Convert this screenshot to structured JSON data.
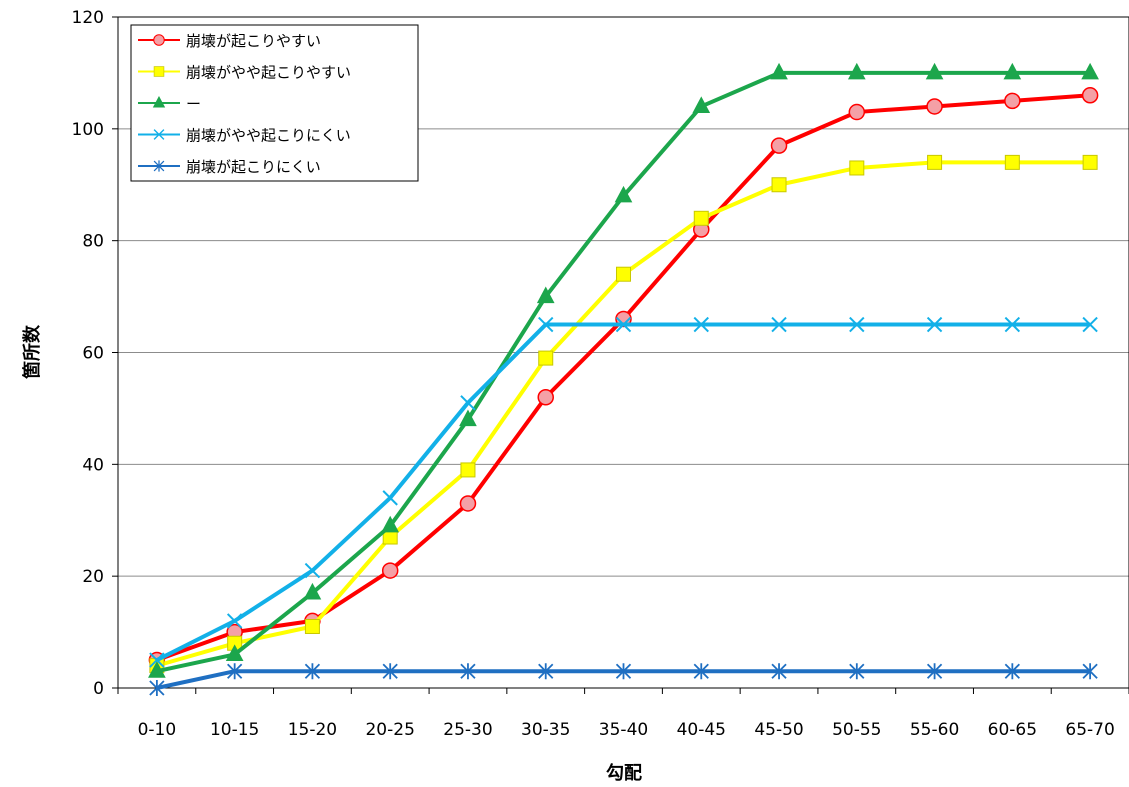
{
  "chart_data": {
    "type": "line",
    "categories": [
      "0-10",
      "10-15",
      "15-20",
      "20-25",
      "25-30",
      "30-35",
      "35-40",
      "40-45",
      "45-50",
      "50-55",
      "55-60",
      "60-65",
      "65-70"
    ],
    "xlabel": "勾配",
    "ylabel": "箇所数",
    "ylim": [
      0,
      120
    ],
    "yticks": [
      0,
      20,
      40,
      60,
      80,
      100,
      120
    ],
    "grid": true,
    "legend_position": "top-left",
    "series": [
      {
        "name": "崩壊が起こりやすい",
        "color": "#ff0000",
        "marker": "circle",
        "marker_fill": "#f4a0a6",
        "values": [
          5,
          10,
          12,
          21,
          33,
          52,
          66,
          82,
          97,
          103,
          104,
          105,
          106
        ]
      },
      {
        "name": "崩壊がやや起こりやすい",
        "color": "#ffff00",
        "marker": "square",
        "marker_fill": "#ffff00",
        "values": [
          4,
          8,
          11,
          27,
          39,
          59,
          74,
          84,
          90,
          93,
          94,
          94,
          94
        ]
      },
      {
        "name": "ー",
        "color": "#1ca64c",
        "marker": "triangle",
        "marker_fill": "#1ca64c",
        "values": [
          3,
          6,
          17,
          29,
          48,
          70,
          88,
          104,
          110,
          110,
          110,
          110,
          110
        ]
      },
      {
        "name": "崩壊がやや起こりにくい",
        "color": "#12b0e8",
        "marker": "x",
        "marker_fill": "#12b0e8",
        "values": [
          5,
          12,
          21,
          34,
          51,
          65,
          65,
          65,
          65,
          65,
          65,
          65,
          65
        ]
      },
      {
        "name": "崩壊が起こりにくい",
        "color": "#1f6fc2",
        "marker": "star",
        "marker_fill": "#1f6fc2",
        "values": [
          0,
          3,
          3,
          3,
          3,
          3,
          3,
          3,
          3,
          3,
          3,
          3,
          3
        ]
      }
    ]
  }
}
